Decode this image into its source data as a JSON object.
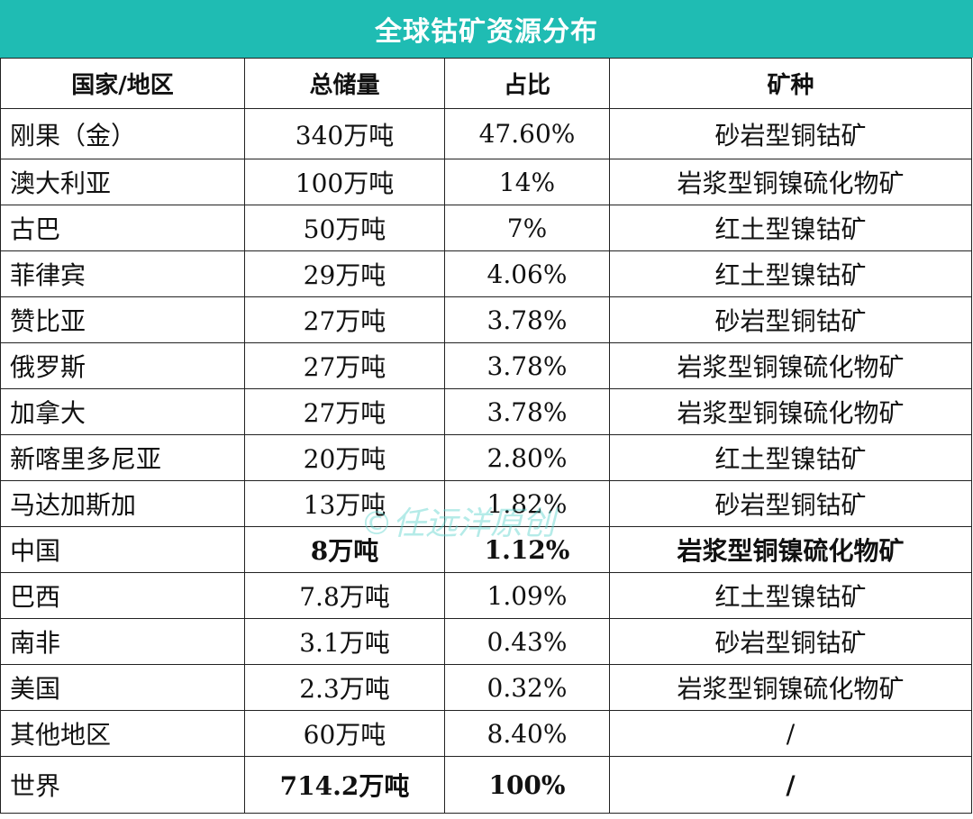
{
  "title": "全球钴矿资源分布",
  "headers": {
    "country": "国家/地区",
    "reserve": "总储量",
    "share": "占比",
    "type": "矿种"
  },
  "rows": [
    {
      "country": "刚果（金）",
      "reserve": "340万吨",
      "share": "47.60%",
      "type": "砂岩型铜钴矿"
    },
    {
      "country": "澳大利亚",
      "reserve": "100万吨",
      "share": "14%",
      "type": "岩浆型铜镍硫化物矿"
    },
    {
      "country": "古巴",
      "reserve": "50万吨",
      "share": "7%",
      "type": "红土型镍钴矿"
    },
    {
      "country": "菲律宾",
      "reserve": "29万吨",
      "share": "4.06%",
      "type": "红土型镍钴矿"
    },
    {
      "country": "赞比亚",
      "reserve": "27万吨",
      "share": "3.78%",
      "type": "砂岩型铜钴矿"
    },
    {
      "country": "俄罗斯",
      "reserve": "27万吨",
      "share": "3.78%",
      "type": "岩浆型铜镍硫化物矿"
    },
    {
      "country": "加拿大",
      "reserve": "27万吨",
      "share": "3.78%",
      "type": "岩浆型铜镍硫化物矿"
    },
    {
      "country": "新喀里多尼亚",
      "reserve": "20万吨",
      "share": "2.80%",
      "type": "红土型镍钴矿"
    },
    {
      "country": "马达加斯加",
      "reserve": "13万吨",
      "share": "1.82%",
      "type": "砂岩型铜钴矿"
    },
    {
      "country": "中国",
      "reserve": "8万吨",
      "share": "1.12%",
      "type": "岩浆型铜镍硫化物矿"
    },
    {
      "country": "巴西",
      "reserve": "7.8万吨",
      "share": "1.09%",
      "type": "红土型镍钴矿"
    },
    {
      "country": "南非",
      "reserve": "3.1万吨",
      "share": "0.43%",
      "type": "砂岩型铜钴矿"
    },
    {
      "country": "美国",
      "reserve": "2.3万吨",
      "share": "0.32%",
      "type": "岩浆型铜镍硫化物矿"
    },
    {
      "country": "其他地区",
      "reserve": "60万吨",
      "share": "8.40%",
      "type": "/"
    },
    {
      "country": "世界",
      "reserve": "714.2万吨",
      "share": "100%",
      "type": "/"
    }
  ],
  "watermark": "©任远洋原创",
  "colors": {
    "title_background": "#1fbcb3",
    "title_text": "#ffffff",
    "watermark": "#5ad2cd"
  }
}
